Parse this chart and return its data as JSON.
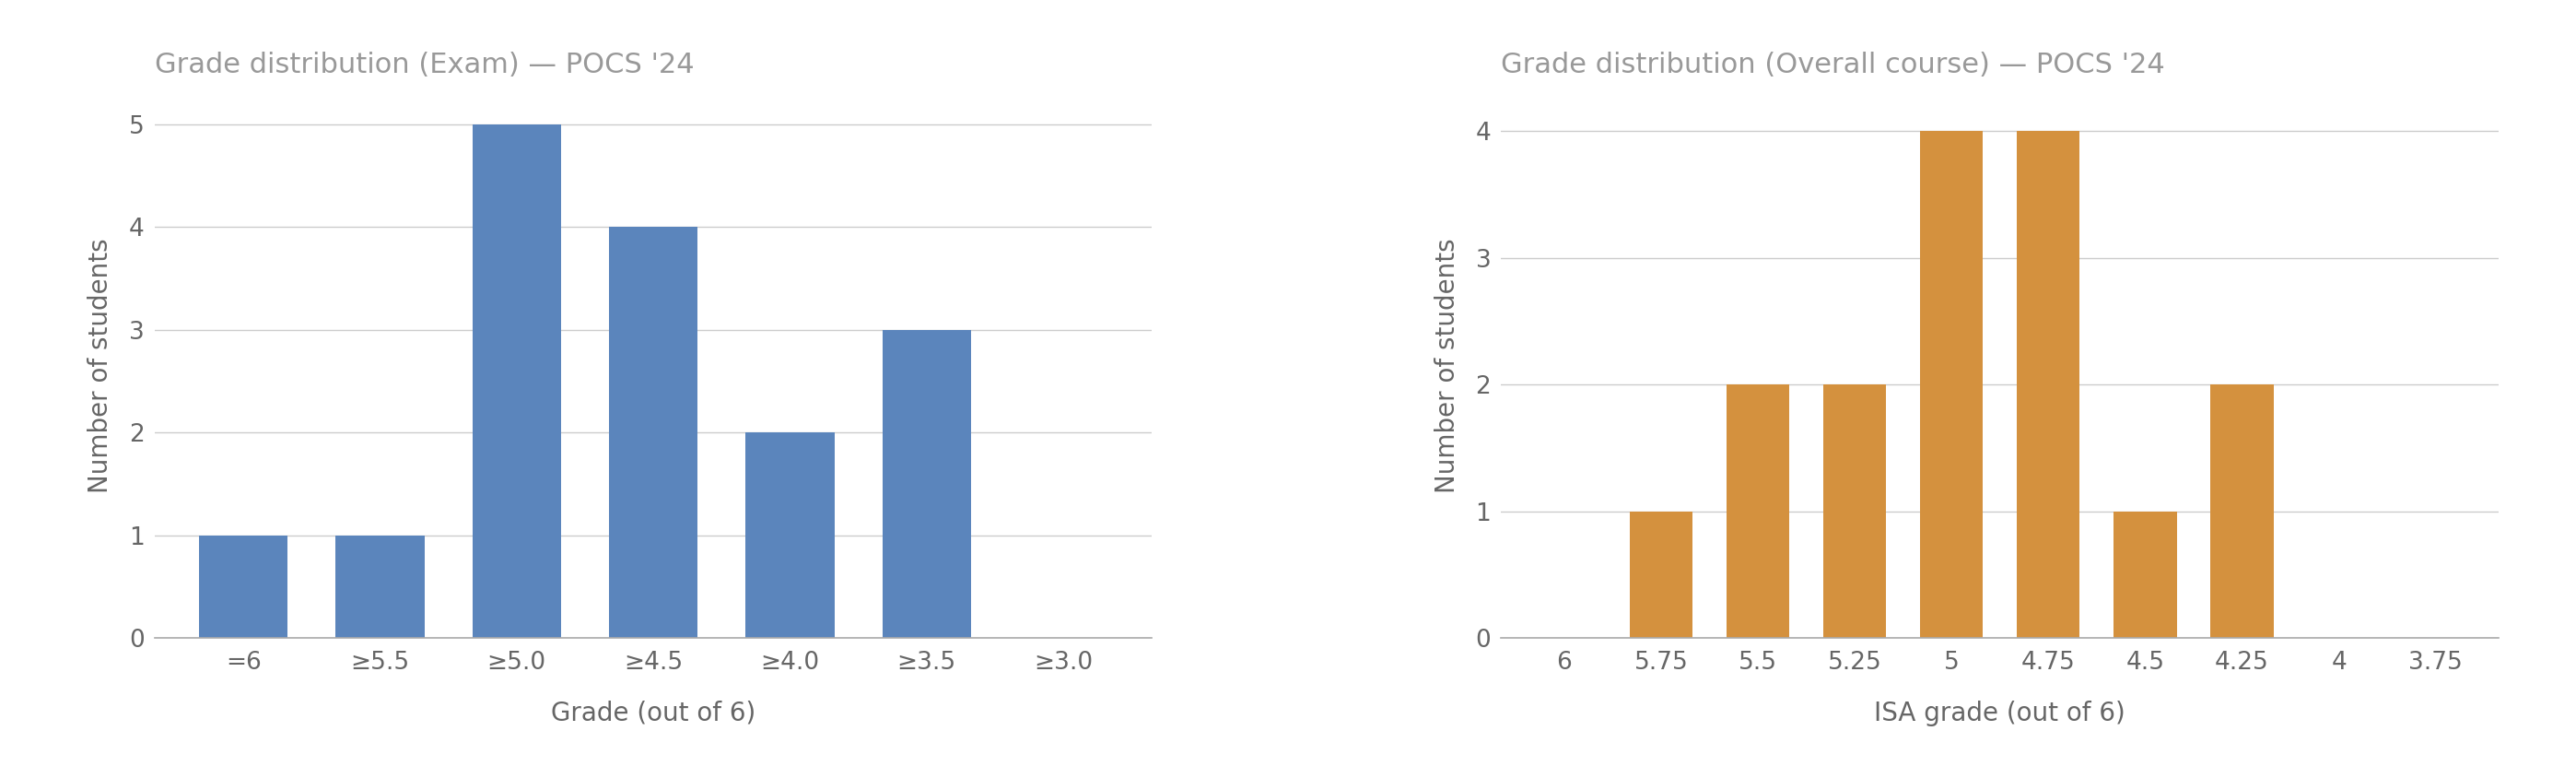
{
  "left": {
    "title": "Grade distribution (Exam) — POCS '24",
    "xlabel": "Grade (out of 6)",
    "ylabel": "Number of students",
    "categories": [
      "=6",
      "≥5.5",
      "≥5.0",
      "≥4.5",
      "≥4.0",
      "≥3.5",
      "≥3.0"
    ],
    "values": [
      1,
      1,
      5,
      4,
      2,
      3,
      0
    ],
    "bar_color": "#5b85bc",
    "ylim": [
      0,
      5.3
    ],
    "yticks": [
      0,
      1,
      2,
      3,
      4,
      5
    ]
  },
  "right": {
    "title": "Grade distribution (Overall course) — POCS '24",
    "xlabel": "ISA grade (out of 6)",
    "ylabel": "Number of students",
    "categories": [
      "6",
      "5.75",
      "5.5",
      "5.25",
      "5",
      "4.75",
      "4.5",
      "4.25",
      "4",
      "3.75"
    ],
    "values": [
      0,
      1,
      2,
      2,
      4,
      4,
      1,
      2,
      0,
      0
    ],
    "bar_color": "#d4913e",
    "ylim": [
      0,
      4.3
    ],
    "yticks": [
      0,
      1,
      2,
      3,
      4
    ]
  },
  "background_color": "#ffffff",
  "title_color": "#999999",
  "axis_label_color": "#666666",
  "tick_color": "#666666",
  "grid_color": "#cccccc",
  "title_fontsize": 22,
  "label_fontsize": 20,
  "tick_fontsize": 19
}
